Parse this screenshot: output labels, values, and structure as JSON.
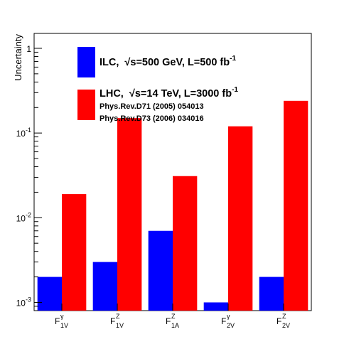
{
  "chart_data": {
    "type": "bar",
    "ylabel": "Uncertainty",
    "y_scale": "log",
    "ylim": [
      0.0008,
      1.5
    ],
    "y_ticks": [
      {
        "base": "10",
        "exp": "-3",
        "value": 0.001
      },
      {
        "base": "10",
        "exp": "-2",
        "value": 0.01
      },
      {
        "base": "10",
        "exp": "-1",
        "value": 0.1
      },
      {
        "base": "1",
        "exp": "",
        "value": 1
      }
    ],
    "categories": [
      {
        "main": "F",
        "sup": "γ",
        "sub": "1V"
      },
      {
        "main": "F",
        "sup": "Z",
        "sub": "1V"
      },
      {
        "main": "F",
        "sup": "Z",
        "sub": "1A"
      },
      {
        "main": "F",
        "sup": "γ",
        "sub": "2V"
      },
      {
        "main": "F",
        "sup": "Z",
        "sub": "2V"
      }
    ],
    "series": [
      {
        "key": "ilc",
        "color": "#0000ff",
        "values": [
          0.002,
          0.003,
          0.007,
          0.001,
          0.002
        ]
      },
      {
        "key": "lhc",
        "color": "#ff0000",
        "values": [
          0.019,
          0.15,
          0.031,
          0.12,
          0.24
        ]
      }
    ],
    "legend": {
      "placement": "top",
      "ilc": {
        "color": "#0000ff",
        "prefix": "ILC,",
        "sqrt": "√",
        "body": "s=500 GeV, L=500 fb",
        "exp": "-1"
      },
      "lhc": {
        "color": "#ff0000",
        "prefix": "LHC,",
        "sqrt": "√",
        "body": "s=14 TeV, L=3000 fb",
        "exp": "-1"
      },
      "refs": [
        "Phys.Rev.D71 (2005) 054013",
        "Phys.Rev.D73 (2006) 034016"
      ]
    },
    "grid": false
  }
}
